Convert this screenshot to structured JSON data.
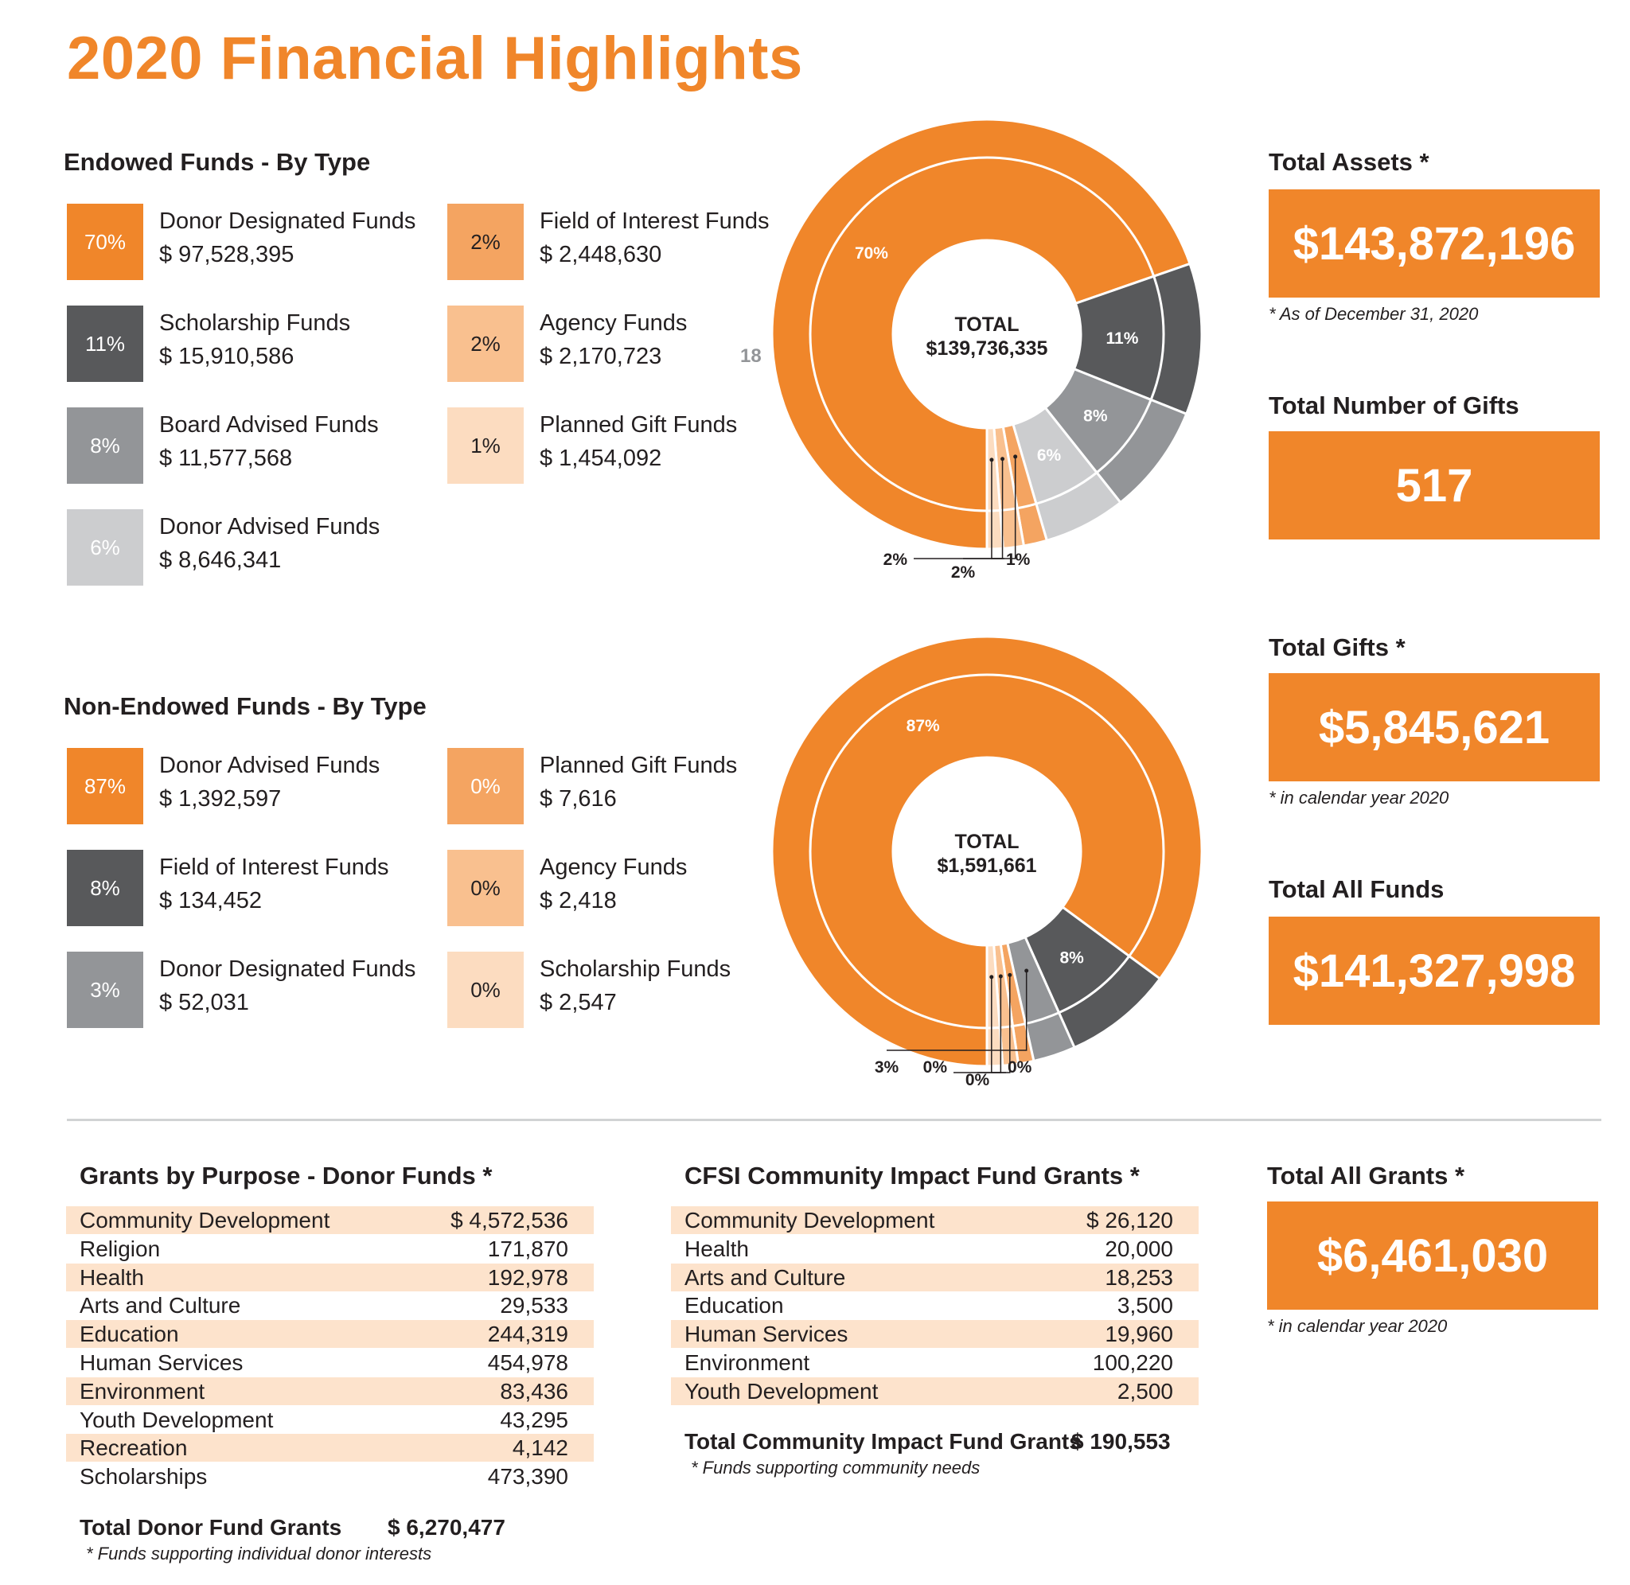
{
  "title": "2020 Financial Highlights",
  "colors": {
    "orange": "#f0862a",
    "orange2": "#f4a461",
    "orange3": "#f9c08f",
    "orange4": "#fcdcc0",
    "gray_dark": "#58595b",
    "gray_mid": "#939598",
    "gray_light": "#cccdcf",
    "row_fill": "#fde3cc"
  },
  "endowed": {
    "heading": "Endowed Funds - By Type",
    "legend": [
      {
        "pct": "70%",
        "name": "Donor Designated Funds",
        "amount": "$ 97,528,395"
      },
      {
        "pct": "11%",
        "name": "Scholarship Funds",
        "amount": "$ 15,910,586"
      },
      {
        "pct": "8%",
        "name": "Board Advised Funds",
        "amount": "$ 11,577,568"
      },
      {
        "pct": "6%",
        "name": "Donor Advised Funds",
        "amount": "$ 8,646,341"
      },
      {
        "pct": "2%",
        "name": "Field of Interest Funds",
        "amount": "$ 2,448,630"
      },
      {
        "pct": "2%",
        "name": "Agency Funds",
        "amount": "$ 2,170,723",
        "note": "18"
      },
      {
        "pct": "1%",
        "name": "Planned Gift Funds",
        "amount": "$ 1,454,092"
      }
    ]
  },
  "non_endowed": {
    "heading": "Non-Endowed Funds - By Type",
    "legend": [
      {
        "pct": "87%",
        "name": "Donor Advised Funds",
        "amount": "$ 1,392,597"
      },
      {
        "pct": "8%",
        "name": "Field of Interest Funds",
        "amount": "$ 134,452"
      },
      {
        "pct": "3%",
        "name": "Donor Designated Funds",
        "amount": "$ 52,031"
      },
      {
        "pct": "0%",
        "name": "Planned Gift Funds",
        "amount": "$ 7,616"
      },
      {
        "pct": "0%",
        "name": "Agency Funds",
        "amount": "$ 2,418"
      },
      {
        "pct": "0%",
        "name": "Scholarship Funds",
        "amount": "$ 2,547"
      }
    ]
  },
  "chart_data": [
    {
      "type": "pie",
      "variant": "donut",
      "center_label": "TOTAL",
      "center_value": "$139,736,335",
      "categories": [
        "Donor Designated Funds",
        "Scholarship Funds",
        "Board Advised Funds",
        "Donor Advised Funds",
        "Field of Interest Funds",
        "Agency Funds",
        "Planned Gift Funds"
      ],
      "values": [
        97528395,
        15910586,
        11577568,
        8646341,
        2448630,
        2170723,
        1454092
      ],
      "slice_labels": [
        "70%",
        "11%",
        "8%",
        "6%",
        "2%",
        "2%",
        "1%"
      ]
    },
    {
      "type": "pie",
      "variant": "donut",
      "center_label": "TOTAL",
      "center_value": "$1,591,661",
      "categories": [
        "Donor Advised Funds",
        "Field of Interest Funds",
        "Donor Designated Funds",
        "Planned Gift Funds",
        "Agency Funds",
        "Scholarship Funds"
      ],
      "values": [
        1392597,
        134452,
        52031,
        7616,
        2418,
        2547
      ],
      "slice_labels": [
        "87%",
        "8%",
        "3%",
        "0%",
        "0%",
        "0%"
      ]
    }
  ],
  "stats": {
    "total_assets": {
      "heading": "Total Assets *",
      "value": "$143,872,196",
      "note": "* As of December 31, 2020"
    },
    "total_gifts_count": {
      "heading": "Total Number of Gifts",
      "value": "517"
    },
    "total_gifts": {
      "heading": "Total Gifts *",
      "value": "$5,845,621",
      "note": "* in calendar year 2020"
    },
    "total_all_funds": {
      "heading": "Total All Funds",
      "value": "$141,327,998"
    },
    "total_all_grants": {
      "heading": "Total All Grants *",
      "value": "$6,461,030",
      "note": "* in calendar year 2020"
    }
  },
  "grants_donor": {
    "heading": "Grants by Purpose - Donor Funds *",
    "rows": [
      {
        "label": "Community Development",
        "value": "$ 4,572,536"
      },
      {
        "label": "Religion",
        "value": "171,870"
      },
      {
        "label": "Health",
        "value": "192,978"
      },
      {
        "label": "Arts and Culture",
        "value": "29,533"
      },
      {
        "label": "Education",
        "value": "244,319"
      },
      {
        "label": "Human Services",
        "value": "454,978"
      },
      {
        "label": "Environment",
        "value": "83,436"
      },
      {
        "label": "Youth Development",
        "value": "43,295"
      },
      {
        "label": "Recreation",
        "value": "4,142"
      },
      {
        "label": "Scholarships",
        "value": "473,390"
      }
    ],
    "total_label": "Total Donor Fund Grants",
    "total_value": "$ 6,270,477",
    "footnote": "* Funds supporting individual donor interests"
  },
  "grants_cfsi": {
    "heading": "CFSI Community Impact Fund Grants *",
    "rows": [
      {
        "label": "Community Development",
        "value": "$ 26,120"
      },
      {
        "label": "Health",
        "value": "20,000"
      },
      {
        "label": "Arts and Culture",
        "value": "18,253"
      },
      {
        "label": "Education",
        "value": "3,500"
      },
      {
        "label": "Human Services",
        "value": "19,960"
      },
      {
        "label": "Environment",
        "value": "100,220"
      },
      {
        "label": "Youth Development",
        "value": "2,500"
      }
    ],
    "total_label": "Total Community Impact Fund Grants",
    "total_value": "$ 190,553",
    "footnote": "* Funds supporting community needs"
  }
}
